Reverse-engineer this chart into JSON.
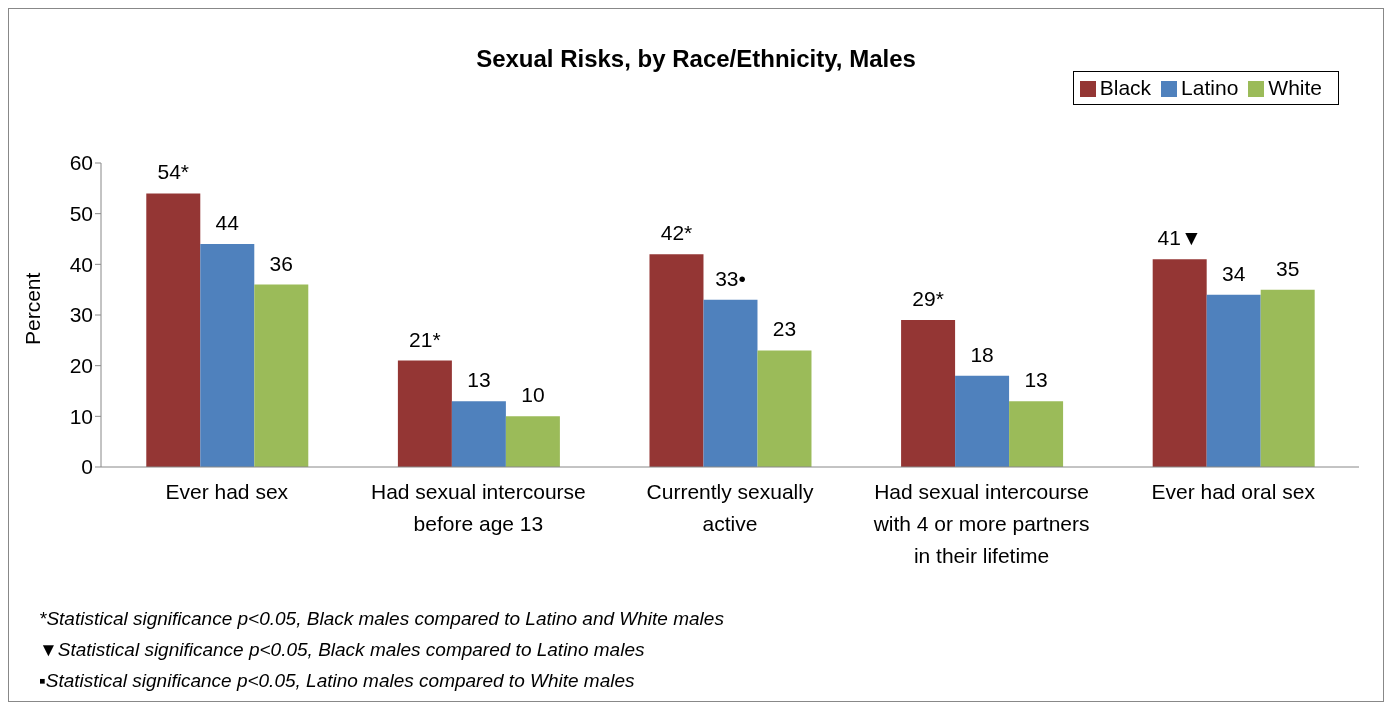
{
  "chart_data": {
    "type": "bar",
    "title": "Sexual Risks, by Race/Ethnicity, Males",
    "ylabel": "Percent",
    "categories": [
      "Ever had sex",
      "Had sexual intercourse before age 13",
      "Currently sexually active",
      "Had sexual intercourse with 4 or more partners\nin their lifetime",
      "Ever had oral sex"
    ],
    "series": [
      {
        "name": "Black",
        "color": "#943634",
        "values": [
          54,
          21,
          42,
          29,
          41
        ],
        "value_labels": [
          "54*",
          "21*",
          "42*",
          "29*",
          "41▼"
        ]
      },
      {
        "name": "Latino",
        "color": "#4f81bd",
        "values": [
          44,
          13,
          33,
          18,
          34
        ],
        "value_labels": [
          "44",
          "13",
          "33•",
          "18",
          "34"
        ]
      },
      {
        "name": "White",
        "color": "#9bbb59",
        "values": [
          36,
          10,
          23,
          13,
          35
        ],
        "value_labels": [
          "36",
          "10",
          "23",
          "13",
          "35"
        ]
      }
    ],
    "ylim": [
      0,
      60
    ],
    "yticks": [
      0,
      10,
      20,
      30,
      40,
      50,
      60
    ],
    "grid": false,
    "legend": "top right",
    "annotations": [
      "*Statistical significance p<0.05, Black males compared to Latino and White males",
      "▼Statistical significance p<0.05, Black males compared to Latino males",
      "▪Statistical significance p<0.05, Latino males compared to White males"
    ]
  }
}
